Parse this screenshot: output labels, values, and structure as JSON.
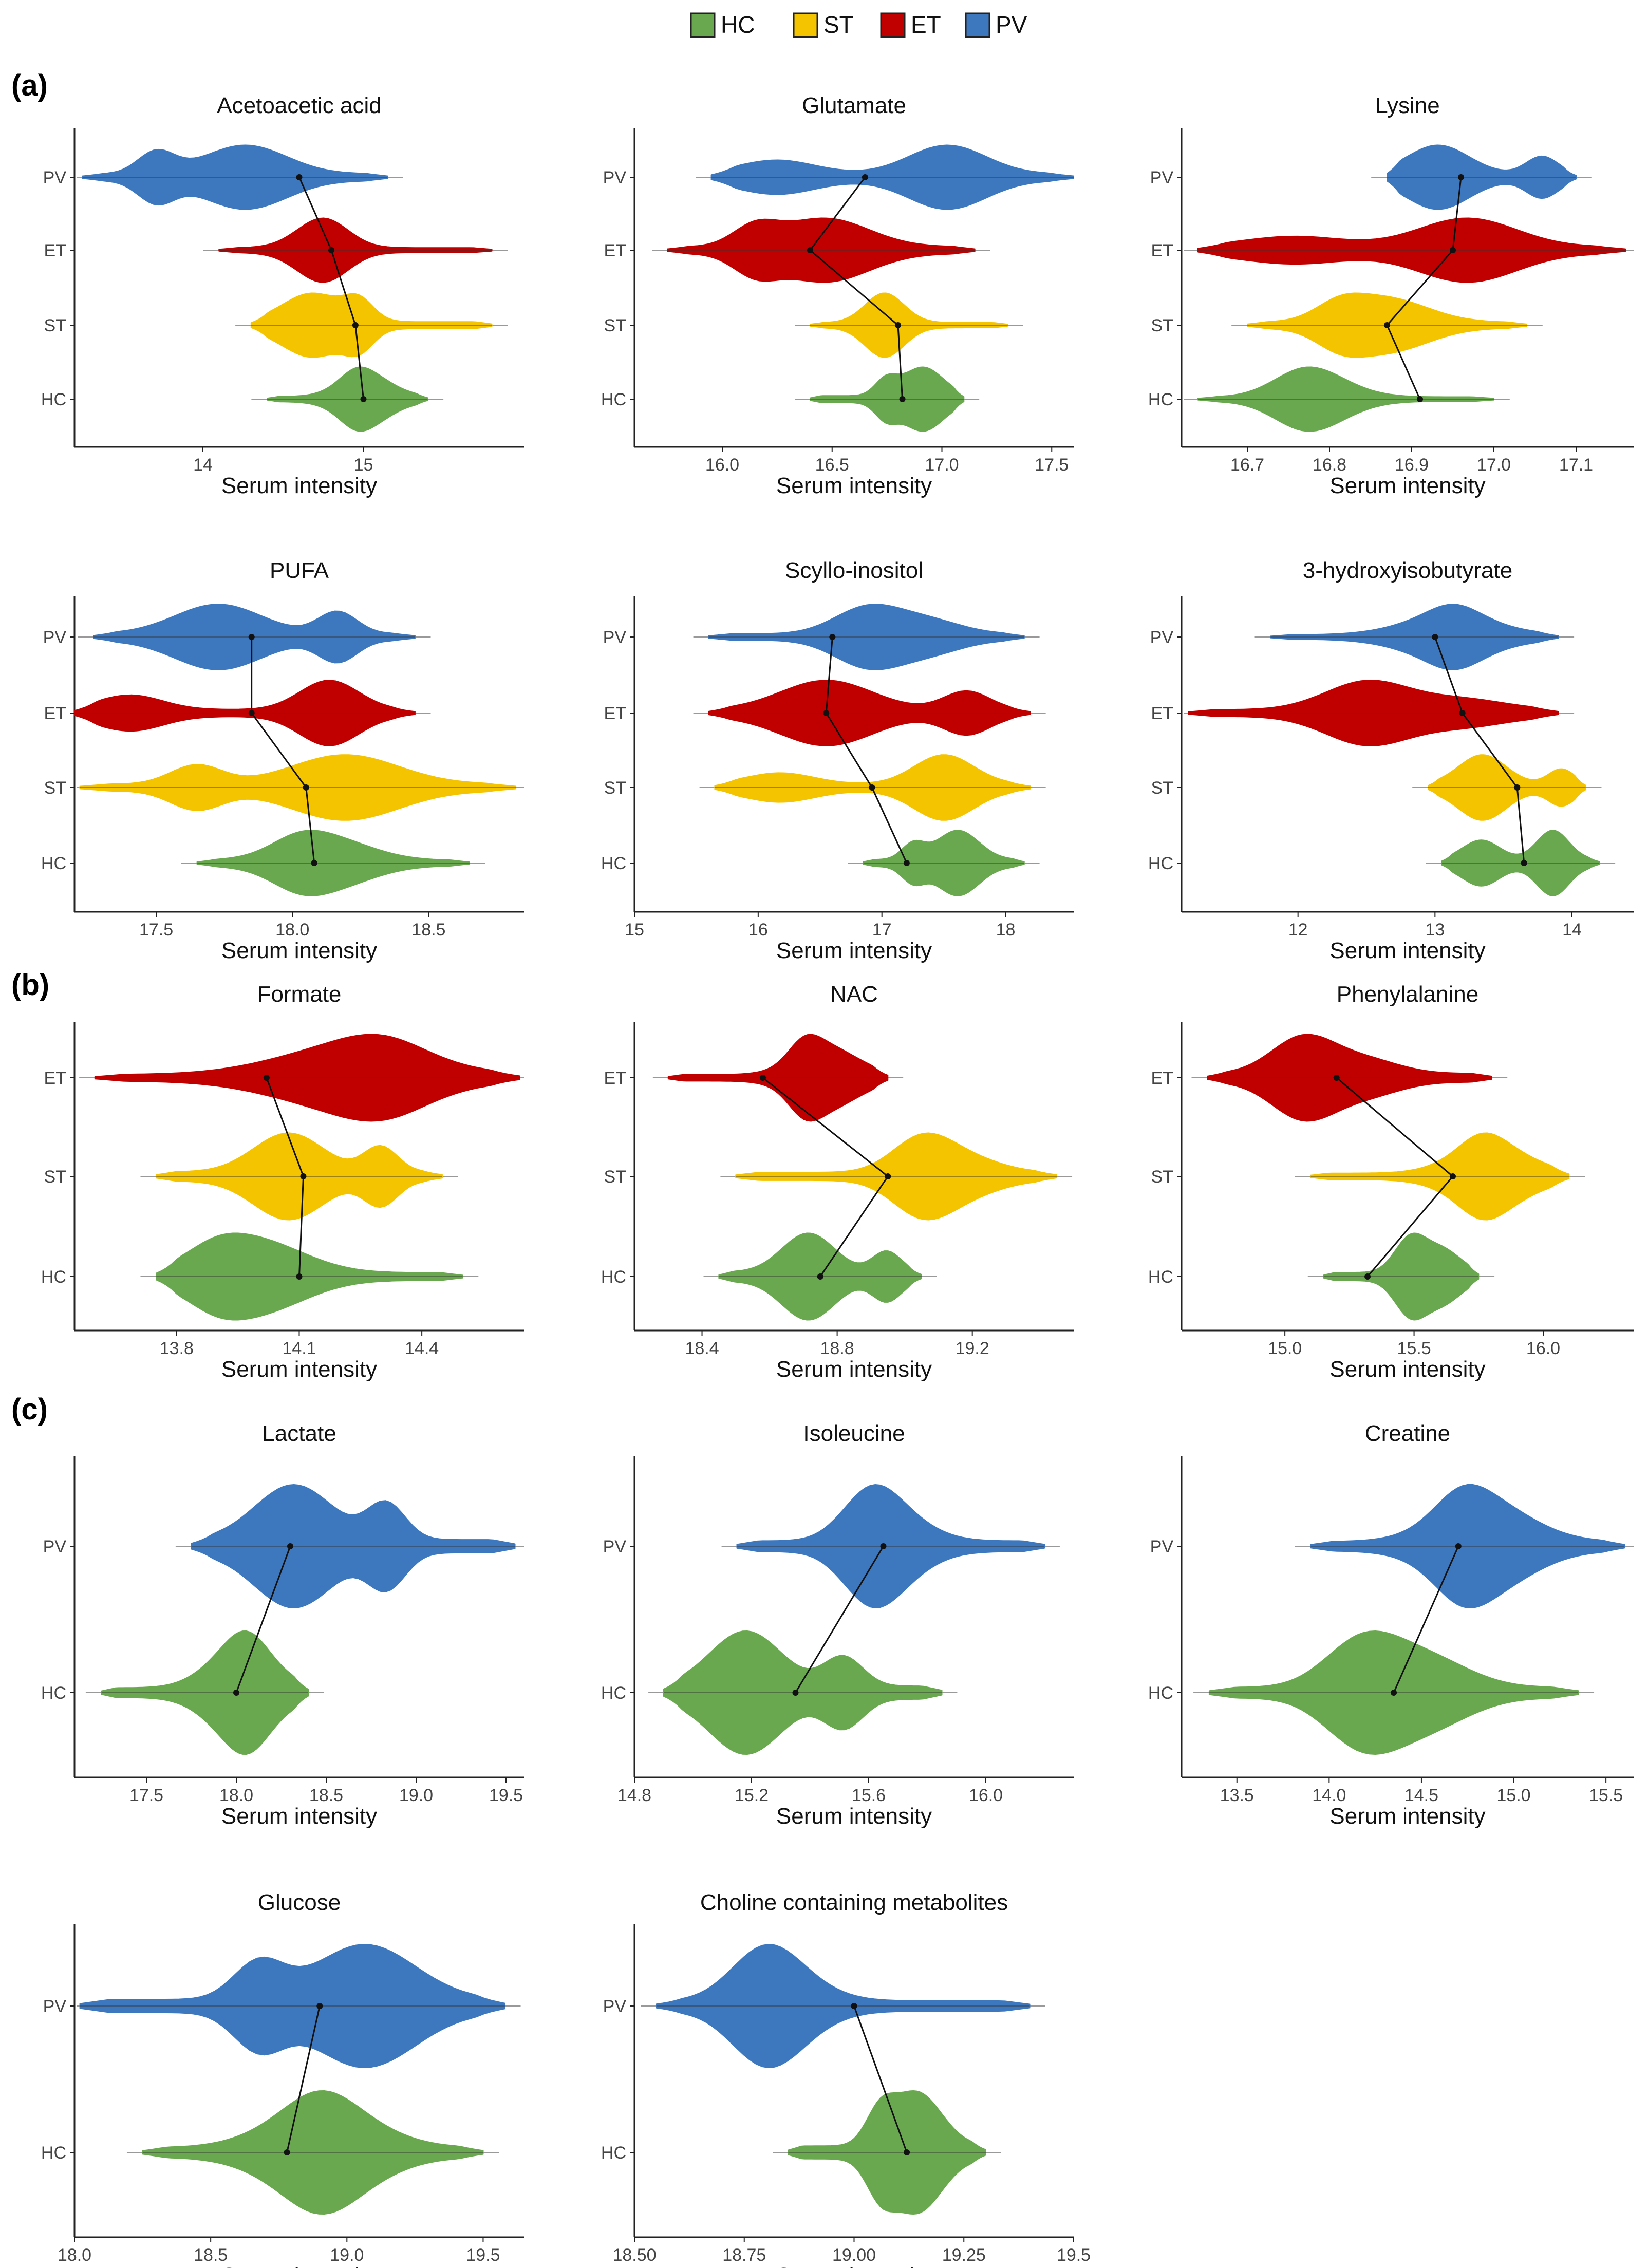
{
  "legend": [
    {
      "label": "HC",
      "color": "#6aa84f"
    },
    {
      "label": "ST",
      "color": "#f5c400"
    },
    {
      "label": "ET",
      "color": "#c00000"
    },
    {
      "label": "PV",
      "color": "#3d78bf"
    }
  ],
  "sections": [
    "(a)",
    "(b)",
    "(c)"
  ],
  "colors": {
    "HC": "#6aa84f",
    "ST": "#f5c400",
    "ET": "#c00000",
    "PV": "#3d78bf"
  },
  "xlabel": "Serum intensity",
  "chart_data": [
    {
      "type": "violin",
      "title": "Acetoacetic acid",
      "xlabel": "Serum intensity",
      "categories": [
        "HC",
        "ST",
        "ET",
        "PV"
      ],
      "xlim": [
        13.2,
        16.0
      ],
      "xticks": [
        "14",
        "15"
      ],
      "series": [
        {
          "group": "HC",
          "min": 14.4,
          "max": 15.4,
          "mean": 15.0
        },
        {
          "group": "ST",
          "min": 14.3,
          "max": 15.8,
          "mean": 14.95
        },
        {
          "group": "ET",
          "min": 14.1,
          "max": 15.8,
          "mean": 14.8
        },
        {
          "group": "PV",
          "min": 13.25,
          "max": 15.15,
          "mean": 14.6
        }
      ]
    },
    {
      "type": "violin",
      "title": "Glutamate",
      "xlabel": "Serum intensity",
      "categories": [
        "HC",
        "ST",
        "ET",
        "PV"
      ],
      "xlim": [
        15.6,
        17.6
      ],
      "xticks": [
        "16.0",
        "16.5",
        "17.0",
        "17.5"
      ],
      "series": [
        {
          "group": "HC",
          "min": 16.4,
          "max": 17.1,
          "mean": 16.82
        },
        {
          "group": "ST",
          "min": 16.4,
          "max": 17.3,
          "mean": 16.8
        },
        {
          "group": "ET",
          "min": 15.75,
          "max": 17.15,
          "mean": 16.4
        },
        {
          "group": "PV",
          "min": 15.95,
          "max": 17.6,
          "mean": 16.65
        }
      ]
    },
    {
      "type": "violin",
      "title": "Lysine",
      "xlabel": "Serum intensity",
      "categories": [
        "HC",
        "ST",
        "ET",
        "PV"
      ],
      "xlim": [
        16.62,
        17.17
      ],
      "xticks": [
        "16.7",
        "16.8",
        "16.9",
        "17.0",
        "17.1"
      ],
      "series": [
        {
          "group": "HC",
          "min": 16.64,
          "max": 17.0,
          "mean": 16.91
        },
        {
          "group": "ST",
          "min": 16.7,
          "max": 17.04,
          "mean": 16.87
        },
        {
          "group": "ET",
          "min": 16.64,
          "max": 17.16,
          "mean": 16.95
        },
        {
          "group": "PV",
          "min": 16.87,
          "max": 17.1,
          "mean": 16.96
        }
      ]
    },
    {
      "type": "violin",
      "title": "PUFA",
      "xlabel": "Serum intensity",
      "categories": [
        "HC",
        "ST",
        "ET",
        "PV"
      ],
      "xlim": [
        17.2,
        18.85
      ],
      "xticks": [
        "17.5",
        "18.0",
        "18.5"
      ],
      "series": [
        {
          "group": "HC",
          "min": 17.65,
          "max": 18.65,
          "mean": 18.08
        },
        {
          "group": "ST",
          "min": 17.22,
          "max": 18.82,
          "mean": 18.05
        },
        {
          "group": "ET",
          "min": 17.2,
          "max": 18.45,
          "mean": 17.85
        },
        {
          "group": "PV",
          "min": 17.27,
          "max": 18.45,
          "mean": 17.85
        }
      ]
    },
    {
      "type": "violin",
      "title": "Scyllo-inositol",
      "xlabel": "Serum intensity",
      "categories": [
        "HC",
        "ST",
        "ET",
        "PV"
      ],
      "xlim": [
        15.0,
        18.55
      ],
      "xticks": [
        "15",
        "16",
        "17",
        "18"
      ],
      "series": [
        {
          "group": "HC",
          "min": 16.85,
          "max": 18.15,
          "mean": 17.2
        },
        {
          "group": "ST",
          "min": 15.65,
          "max": 18.2,
          "mean": 16.92
        },
        {
          "group": "ET",
          "min": 15.6,
          "max": 18.2,
          "mean": 16.55
        },
        {
          "group": "PV",
          "min": 15.6,
          "max": 18.15,
          "mean": 16.6
        }
      ]
    },
    {
      "type": "violin",
      "title": "3-hydroxyisobutyrate",
      "xlabel": "Serum intensity",
      "categories": [
        "HC",
        "ST",
        "ET",
        "PV"
      ],
      "xlim": [
        11.15,
        14.45
      ],
      "xticks": [
        "12",
        "13",
        "14"
      ],
      "series": [
        {
          "group": "HC",
          "min": 13.05,
          "max": 14.2,
          "mean": 13.65
        },
        {
          "group": "ST",
          "min": 12.95,
          "max": 14.1,
          "mean": 13.6
        },
        {
          "group": "ET",
          "min": 11.2,
          "max": 13.9,
          "mean": 13.2
        },
        {
          "group": "PV",
          "min": 11.8,
          "max": 13.9,
          "mean": 13.0
        }
      ]
    },
    {
      "type": "violin",
      "title": "Formate",
      "xlabel": "Serum intensity",
      "categories": [
        "HC",
        "ST",
        "ET"
      ],
      "xlim": [
        13.55,
        14.65
      ],
      "xticks": [
        "13.8",
        "14.1",
        "14.4"
      ],
      "series": [
        {
          "group": "HC",
          "min": 13.75,
          "max": 14.5,
          "mean": 14.1
        },
        {
          "group": "ST",
          "min": 13.75,
          "max": 14.45,
          "mean": 14.11
        },
        {
          "group": "ET",
          "min": 13.6,
          "max": 14.64,
          "mean": 14.02
        }
      ]
    },
    {
      "type": "violin",
      "title": "NAC",
      "xlabel": "Serum intensity",
      "categories": [
        "HC",
        "ST",
        "ET"
      ],
      "xlim": [
        18.2,
        19.5
      ],
      "xticks": [
        "18.4",
        "18.8",
        "19.2"
      ],
      "series": [
        {
          "group": "HC",
          "min": 18.45,
          "max": 19.05,
          "mean": 18.75
        },
        {
          "group": "ST",
          "min": 18.5,
          "max": 19.45,
          "mean": 18.95
        },
        {
          "group": "ET",
          "min": 18.3,
          "max": 18.95,
          "mean": 18.58
        }
      ]
    },
    {
      "type": "violin",
      "title": "Phenylalanine",
      "xlabel": "Serum intensity",
      "categories": [
        "HC",
        "ST",
        "ET"
      ],
      "xlim": [
        14.6,
        16.35
      ],
      "xticks": [
        "15.0",
        "15.5",
        "16.0"
      ],
      "series": [
        {
          "group": "HC",
          "min": 15.15,
          "max": 15.75,
          "mean": 15.32
        },
        {
          "group": "ST",
          "min": 15.1,
          "max": 16.1,
          "mean": 15.65
        },
        {
          "group": "ET",
          "min": 14.7,
          "max": 15.8,
          "mean": 15.2
        }
      ]
    },
    {
      "type": "violin",
      "title": "Lactate",
      "xlabel": "Serum intensity",
      "categories": [
        "HC",
        "PV"
      ],
      "xlim": [
        17.1,
        19.6
      ],
      "xticks": [
        "17.5",
        "18.0",
        "18.5",
        "19.0",
        "19.5"
      ],
      "series": [
        {
          "group": "HC",
          "min": 17.25,
          "max": 18.4,
          "mean": 18.0
        },
        {
          "group": "PV",
          "min": 17.75,
          "max": 19.55,
          "mean": 18.3
        }
      ]
    },
    {
      "type": "violin",
      "title": "Isoleucine",
      "xlabel": "Serum intensity",
      "categories": [
        "HC",
        "PV"
      ],
      "xlim": [
        14.8,
        16.3
      ],
      "xticks": [
        "14.8",
        "15.2",
        "15.6",
        "16.0"
      ],
      "series": [
        {
          "group": "HC",
          "min": 14.9,
          "max": 15.85,
          "mean": 15.35
        },
        {
          "group": "PV",
          "min": 15.15,
          "max": 16.2,
          "mean": 15.65
        }
      ]
    },
    {
      "type": "violin",
      "title": "Creatine",
      "xlabel": "Serum intensity",
      "categories": [
        "HC",
        "PV"
      ],
      "xlim": [
        13.2,
        15.65
      ],
      "xticks": [
        "13.5",
        "14.0",
        "14.5",
        "15.0",
        "15.5"
      ],
      "series": [
        {
          "group": "HC",
          "min": 13.35,
          "max": 15.35,
          "mean": 14.35
        },
        {
          "group": "PV",
          "min": 13.9,
          "max": 15.6,
          "mean": 14.7
        }
      ]
    },
    {
      "type": "violin",
      "title": "Glucose",
      "xlabel": "Serum intensity",
      "categories": [
        "HC",
        "PV"
      ],
      "xlim": [
        18.0,
        19.65
      ],
      "xticks": [
        "18.0",
        "18.5",
        "19.0",
        "19.5"
      ],
      "series": [
        {
          "group": "HC",
          "min": 18.25,
          "max": 19.5,
          "mean": 18.78
        },
        {
          "group": "PV",
          "min": 18.02,
          "max": 19.58,
          "mean": 18.9
        }
      ]
    },
    {
      "type": "violin",
      "title": "Choline containing metabolites",
      "xlabel": "Serum intensity",
      "categories": [
        "HC",
        "PV"
      ],
      "xlim": [
        18.5,
        19.5
      ],
      "xticks": [
        "18.50",
        "18.75",
        "19.00",
        "19.25",
        "19.5"
      ],
      "series": [
        {
          "group": "HC",
          "min": 18.85,
          "max": 19.3,
          "mean": 19.12
        },
        {
          "group": "PV",
          "min": 18.55,
          "max": 19.4,
          "mean": 19.0
        }
      ]
    }
  ]
}
